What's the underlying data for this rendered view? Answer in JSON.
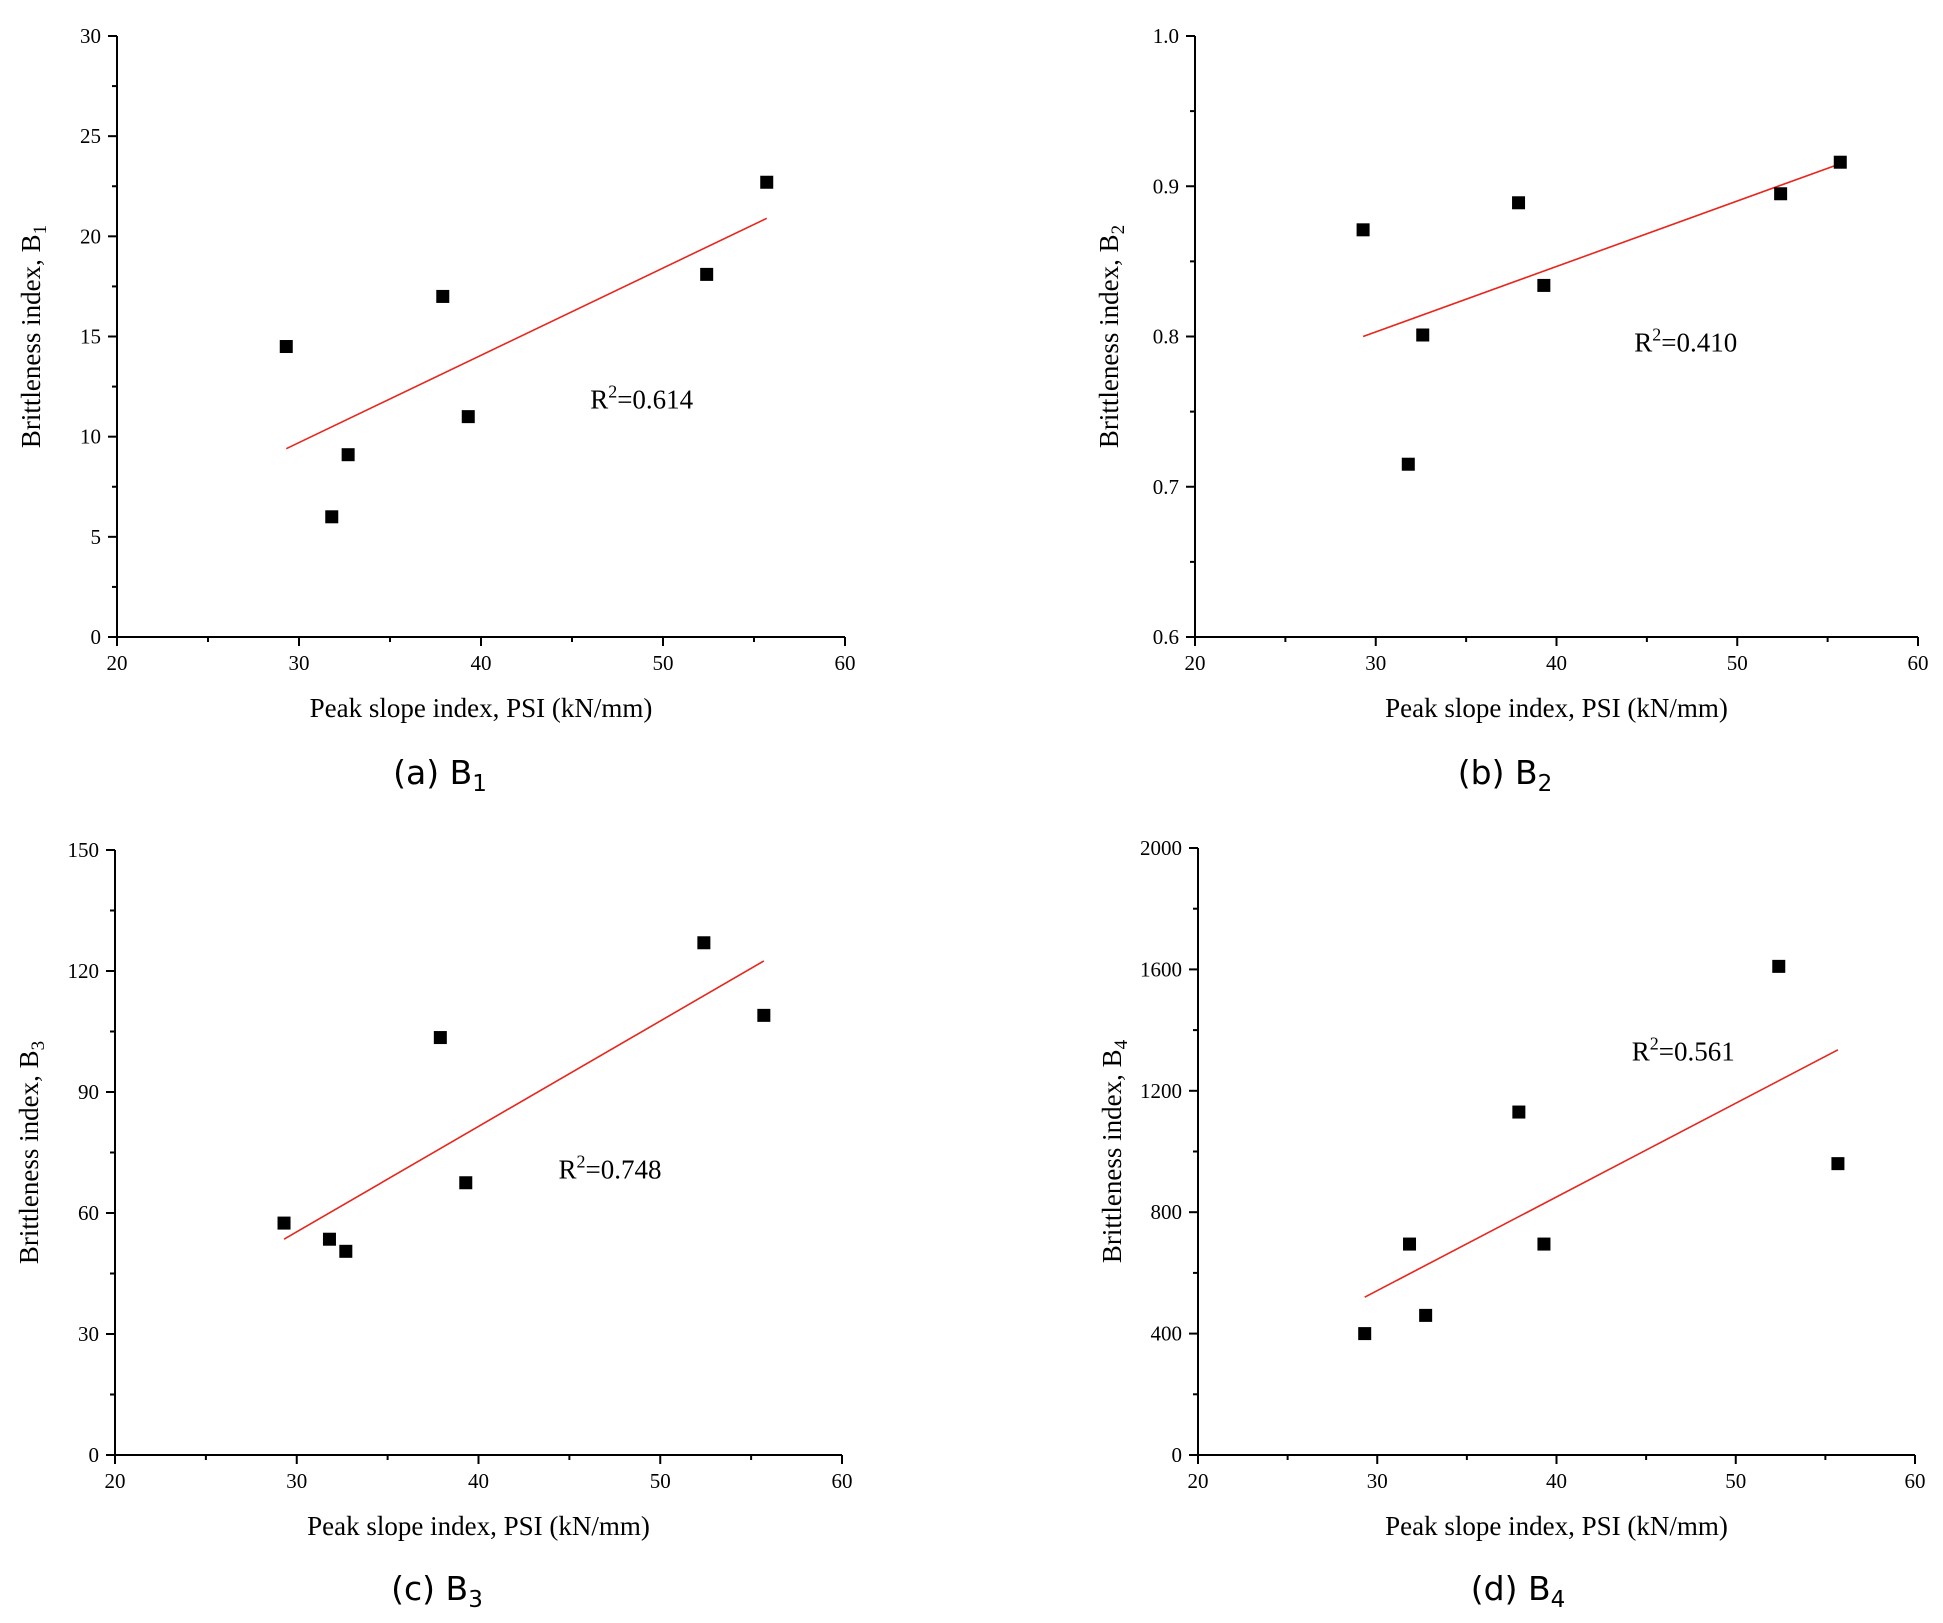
{
  "chart_data": [
    {
      "type": "scatter",
      "panel": "a",
      "caption": "(a) B",
      "caption_sub": "1",
      "xlabel": "Peak slope index, PSI (kN/mm)",
      "ylabel": "Brittleness index, B",
      "ylabel_sub": "1",
      "xlim": [
        20,
        60
      ],
      "ylim": [
        0,
        30
      ],
      "xticks": [
        20,
        30,
        40,
        50,
        60
      ],
      "yticks": [
        0,
        5,
        10,
        15,
        20,
        25,
        30
      ],
      "ytick_labels": [
        "0",
        "5",
        "10",
        "15",
        "20",
        "25",
        "30"
      ],
      "x": [
        29.3,
        31.8,
        32.7,
        37.9,
        39.3,
        52.4,
        55.7
      ],
      "y": [
        14.5,
        6.0,
        9.1,
        17.0,
        11.0,
        18.1,
        22.7
      ],
      "fit": {
        "x": [
          29.3,
          55.7
        ],
        "y": [
          9.4,
          20.9
        ]
      },
      "r2_base": "R",
      "r2_sup": "2",
      "r2_value": "=0.614",
      "r2_at": [
        46.0,
        11.4
      ]
    },
    {
      "type": "scatter",
      "panel": "b",
      "caption": "(b) B",
      "caption_sub": "2",
      "xlabel": "Peak slope index, PSI (kN/mm)",
      "ylabel": "Brittleness index, B",
      "ylabel_sub": "2",
      "xlim": [
        20,
        60
      ],
      "ylim": [
        0.6,
        1.0
      ],
      "xticks": [
        20,
        30,
        40,
        50,
        60
      ],
      "yticks": [
        0.6,
        0.7,
        0.8,
        0.9,
        1.0
      ],
      "ytick_labels": [
        "0.6",
        "0.7",
        "0.8",
        "0.9",
        "1.0"
      ],
      "x": [
        29.3,
        31.8,
        32.6,
        37.9,
        39.3,
        52.4,
        55.7
      ],
      "y": [
        0.871,
        0.715,
        0.801,
        0.889,
        0.834,
        0.895,
        0.916
      ],
      "fit": {
        "x": [
          29.3,
          55.7
        ],
        "y": [
          0.8,
          0.915
        ]
      },
      "r2_base": "R",
      "r2_sup": "2",
      "r2_value": "=0.410",
      "r2_at": [
        44.3,
        0.79
      ]
    },
    {
      "type": "scatter",
      "panel": "c",
      "caption": "(c) B",
      "caption_sub": "3",
      "xlabel": "Peak slope index, PSI (kN/mm)",
      "ylabel": "Brittleness index, B",
      "ylabel_sub": "3",
      "xlim": [
        20,
        60
      ],
      "ylim": [
        0,
        150
      ],
      "xticks": [
        20,
        30,
        40,
        50,
        60
      ],
      "yticks": [
        0,
        30,
        60,
        90,
        120,
        150
      ],
      "ytick_labels": [
        "0",
        "30",
        "60",
        "90",
        "120",
        "150"
      ],
      "x": [
        29.3,
        31.8,
        32.7,
        37.9,
        39.3,
        52.4,
        55.7
      ],
      "y": [
        57.5,
        53.5,
        50.5,
        103.5,
        67.5,
        127.0,
        109.0
      ],
      "fit": {
        "x": [
          29.3,
          55.7
        ],
        "y": [
          53.5,
          122.5
        ]
      },
      "r2_base": "R",
      "r2_sup": "2",
      "r2_value": "=0.748",
      "r2_at": [
        44.4,
        68.5
      ]
    },
    {
      "type": "scatter",
      "panel": "d",
      "caption": "(d) B",
      "caption_sub": "4",
      "xlabel": "Peak slope index, PSI (kN/mm)",
      "ylabel": "Brittleness index, B",
      "ylabel_sub": "4",
      "xlim": [
        20,
        60
      ],
      "ylim": [
        0,
        2000
      ],
      "xticks": [
        20,
        30,
        40,
        50,
        60
      ],
      "yticks": [
        0,
        400,
        800,
        1200,
        1600,
        2000
      ],
      "ytick_labels": [
        "0",
        "400",
        "800",
        "1200",
        "1600",
        "2000"
      ],
      "x": [
        29.3,
        31.8,
        32.7,
        37.9,
        39.3,
        52.4,
        55.7
      ],
      "y": [
        400,
        695,
        460,
        1130,
        695,
        1610,
        960
      ],
      "fit": {
        "x": [
          29.3,
          55.7
        ],
        "y": [
          520,
          1335
        ]
      },
      "r2_base": "R",
      "r2_sup": "2",
      "r2_value": "=0.561",
      "r2_at": [
        44.2,
        1300
      ]
    }
  ]
}
